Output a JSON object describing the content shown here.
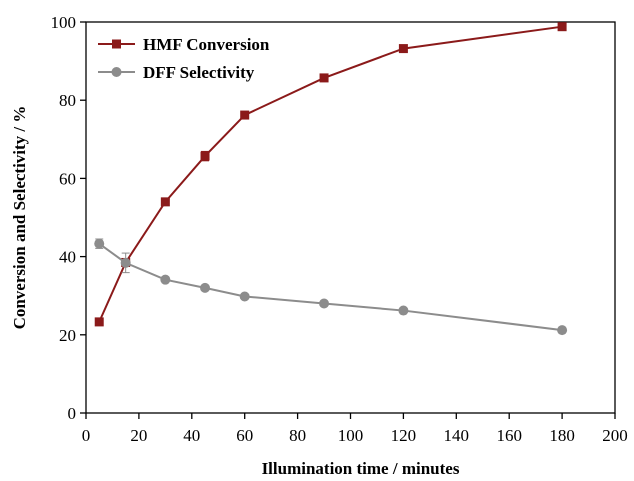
{
  "chart_data": {
    "type": "line",
    "xlabel": "Illumination time / minutes",
    "ylabel": "Conversion and Selectivity / %",
    "xlim": [
      0,
      200
    ],
    "ylim": [
      0,
      100
    ],
    "xticks": [
      0,
      20,
      40,
      60,
      80,
      100,
      120,
      140,
      160,
      180,
      200
    ],
    "yticks": [
      0,
      20,
      40,
      60,
      80,
      100
    ],
    "grid": false,
    "legend_position": "top-left",
    "series": [
      {
        "name": "HMF Conversion",
        "color": "#8b1a1a",
        "marker": "square",
        "x": [
          5,
          15,
          30,
          45,
          60,
          90,
          120,
          180
        ],
        "y": [
          23.3,
          38.5,
          54.0,
          65.7,
          76.2,
          85.7,
          93.2,
          98.8
        ],
        "err": [
          0,
          1.0,
          0,
          1.2,
          0,
          0,
          0,
          0
        ]
      },
      {
        "name": "DFF Selectivity",
        "color": "#8c8c8c",
        "marker": "circle",
        "x": [
          5,
          15,
          30,
          45,
          60,
          90,
          120,
          180
        ],
        "y": [
          43.3,
          38.4,
          34.1,
          32.0,
          29.8,
          28.0,
          26.2,
          21.2
        ],
        "err": [
          1.2,
          2.5,
          0,
          0,
          0,
          0,
          0,
          0
        ]
      }
    ]
  }
}
